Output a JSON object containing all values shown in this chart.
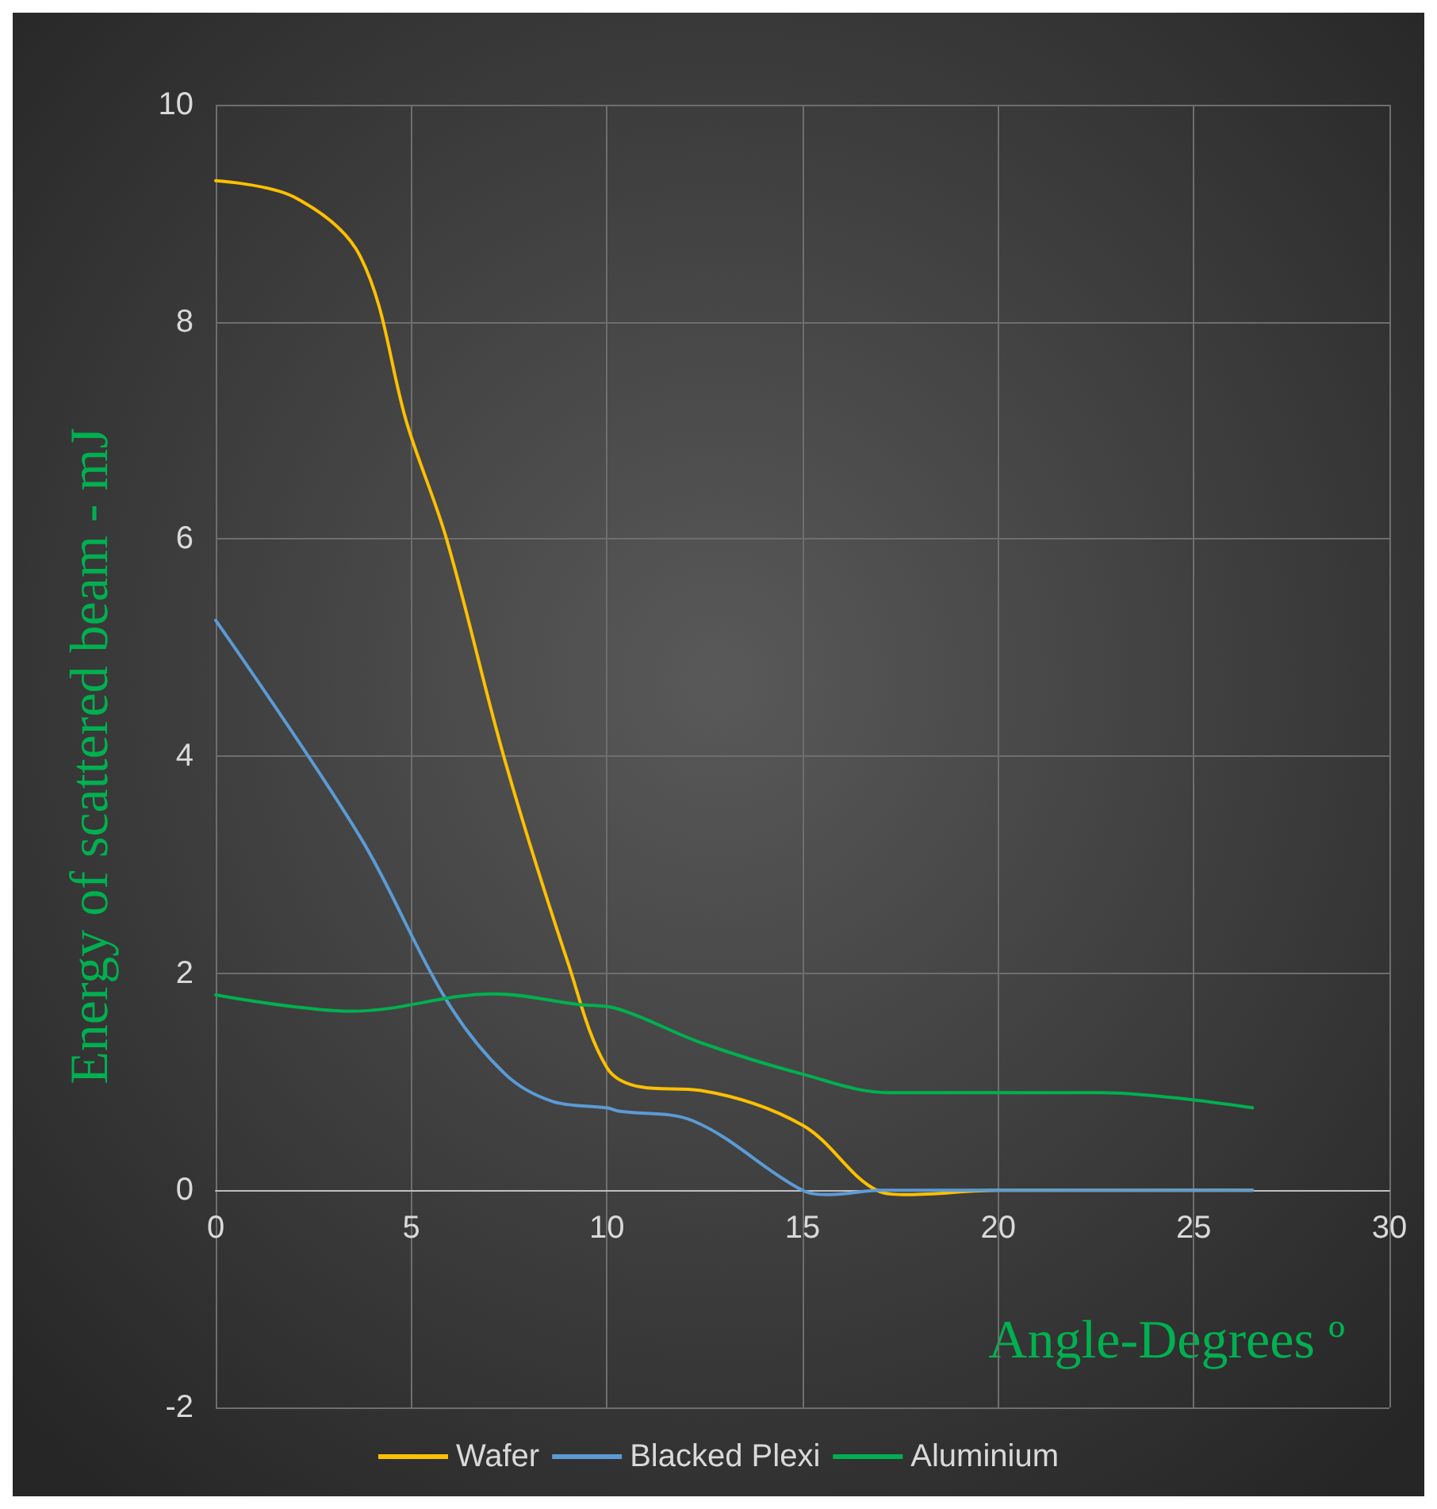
{
  "chart_data": {
    "type": "line",
    "xlabel": "Angle-Degrees º",
    "ylabel": "Energy of scattered beam - mJ",
    "xlim": [
      0,
      30
    ],
    "xticks": [
      0,
      5,
      10,
      15,
      20,
      25,
      30
    ],
    "ylim": [
      -2,
      10
    ],
    "yticks": [
      -2,
      0,
      2,
      4,
      6,
      8,
      10
    ],
    "grid": true,
    "legend": "bottom",
    "marker": "none",
    "line_style": "solid",
    "series": [
      {
        "name": "Wafer",
        "color": "#ffc000",
        "x": [
          0,
          2,
          3.7,
          4.9,
          5.9,
          7.4,
          9,
          10,
          10.9,
          12.4,
          15,
          16.9,
          17.7,
          20,
          26.5
        ],
        "values": [
          9.3,
          9.15,
          8.6,
          7.05,
          6,
          3.95,
          2.1,
          1.13,
          0.95,
          0.92,
          0.6,
          0,
          -0.04,
          0,
          0
        ]
      },
      {
        "name": "Blacked Plexi",
        "color": "#5b9bd5",
        "x": [
          0,
          3.7,
          5.9,
          7.4,
          8.6,
          10,
          10.3,
          12.2,
          15,
          15.7,
          17,
          26.5
        ],
        "values": [
          5.25,
          3.25,
          1.75,
          1.07,
          0.82,
          0.76,
          0.73,
          0.64,
          0,
          -0.04,
          0,
          0
        ]
      },
      {
        "name": "Aluminium",
        "color": "#00b050",
        "x": [
          0,
          3.5,
          7.1,
          9.3,
          10.2,
          12.4,
          15,
          17.2,
          22.6,
          26.5
        ],
        "values": [
          1.8,
          1.65,
          1.81,
          1.71,
          1.68,
          1.36,
          1.07,
          0.9,
          0.9,
          0.76
        ]
      }
    ]
  }
}
